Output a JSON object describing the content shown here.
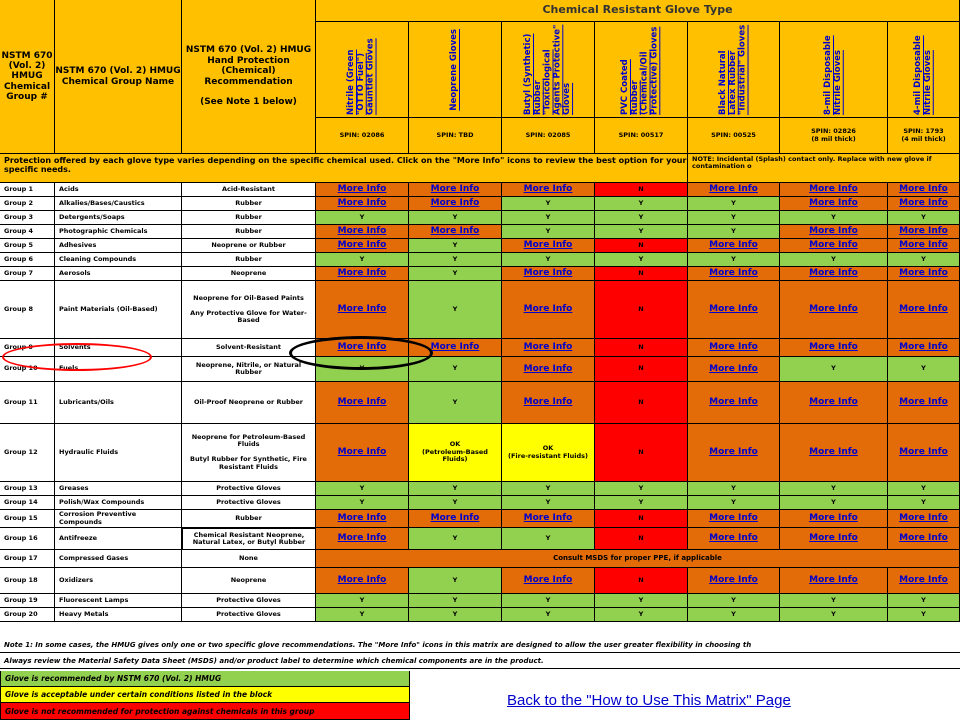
{
  "header": {
    "col_group": "NSTM 670 (Vol. 2) HMUG Chemical Group #",
    "col_name": "NSTM 670 (Vol. 2) HMUG Chemical Group Name",
    "col_rec": "NSTM 670 (Vol. 2) HMUG Hand Protection (Chemical) Recommendation\n\n(See Note 1 below)",
    "glove_type_title": "Chemical Resistant Glove Type"
  },
  "gloves": [
    {
      "name": "Nitrile (Green \"OTTO Fuel\") Gauntlet Gloves",
      "spin": "SPIN: 02086"
    },
    {
      "name": "Neoprene Gloves",
      "spin": "SPIN: TBD"
    },
    {
      "name": "Butyl (Synthetic) Rubber \"Toxicological Agents Protective\" Gloves",
      "spin": "SPIN: 02085"
    },
    {
      "name": "PVC Coated Rubber (Chemical/Oil Protective) Gloves",
      "spin": "SPIN: 00517"
    },
    {
      "name": "Black Natural Latex Rubber \"Industrial\" Gloves",
      "spin": "SPIN: 00525"
    },
    {
      "name": "8-mil Disposable Nitrile Gloves",
      "spin": "SPIN: 02826\n(8 mil thick)"
    },
    {
      "name": "4-mil Disposable Nitrile Gloves",
      "spin": "SPIN: 1793\n(4 mil thick)"
    }
  ],
  "protection_note": "Protection offered by each glove type varies depending on the specific chemical used.  Click on the \"More Info\" icons to review the best option for your specific needs.",
  "incidental_note": "NOTE: Incidental (Splash) contact only. Replace with new glove if contamination o",
  "link_text": "More Info",
  "rows": [
    {
      "group": "Group 1",
      "name": "Acids",
      "rec": "Acid-Resistant",
      "cells": [
        "More Info",
        "More Info",
        "More Info",
        "N",
        "More Info",
        "More Info",
        "More Info"
      ]
    },
    {
      "group": "Group 2",
      "name": "Alkalies/Bases/Caustics",
      "rec": "Rubber",
      "cells": [
        "More Info",
        "More Info",
        "Y",
        "Y",
        "Y",
        "More Info",
        "More Info"
      ]
    },
    {
      "group": "Group 3",
      "name": "Detergents/Soaps",
      "rec": "Rubber",
      "cells": [
        "Y",
        "Y",
        "Y",
        "Y",
        "Y",
        "Y",
        "Y"
      ]
    },
    {
      "group": "Group 4",
      "name": "Photographic Chemicals",
      "rec": "Rubber",
      "cells": [
        "More Info",
        "More Info",
        "Y",
        "Y",
        "Y",
        "More Info",
        "More Info"
      ]
    },
    {
      "group": "Group 5",
      "name": "Adhesives",
      "rec": "Neoprene or Rubber",
      "cells": [
        "More Info",
        "Y",
        "More Info",
        "N",
        "More Info",
        "More Info",
        "More Info"
      ]
    },
    {
      "group": "Group 6",
      "name": "Cleaning Compounds",
      "rec": "Rubber",
      "cells": [
        "Y",
        "Y",
        "Y",
        "Y",
        "Y",
        "Y",
        "Y"
      ]
    },
    {
      "group": "Group 7",
      "name": "Aerosols",
      "rec": "Neoprene",
      "cells": [
        "More Info",
        "Y",
        "More Info",
        "N",
        "More Info",
        "More Info",
        "More Info"
      ]
    },
    {
      "group": "Group 8",
      "name": "Paint Materials (Oil-Based)",
      "rec": "Neoprene for Oil-Based Paints\n\nAny Protective Glove for Water-Based",
      "cells": [
        "More Info",
        "Y",
        "More Info",
        "N",
        "More Info",
        "More Info",
        "More Info"
      ]
    },
    {
      "group": "Group 9",
      "name": "Solvents",
      "rec": "Solvent-Resistant",
      "cells": [
        "More Info",
        "More Info",
        "More Info",
        "N",
        "More Info",
        "More Info",
        "More Info"
      ]
    },
    {
      "group": "Group 10",
      "name": "Fuels",
      "rec": "Neoprene, Nitrile, or Natural Rubber",
      "cells": [
        "Y",
        "Y",
        "More Info",
        "N",
        "More Info",
        "Y",
        "Y"
      ]
    },
    {
      "group": "Group 11",
      "name": "Lubricants/Oils",
      "rec": "Oil-Proof Neoprene or Rubber",
      "cells": [
        "More Info",
        "Y",
        "More Info",
        "N",
        "More Info",
        "More Info",
        "More Info"
      ]
    },
    {
      "group": "Group 12",
      "name": "Hydraulic Fluids",
      "rec": "Neoprene for Petroleum-Based Fluids\n\nButyl Rubber for Synthetic, Fire Resistant Fluids",
      "cells": [
        "More Info",
        "OK\n(Petroleum-Based Fluids)",
        "OK\n(Fire-resistant Fluids)",
        "N",
        "More Info",
        "More Info",
        "More Info"
      ]
    },
    {
      "group": "Group 13",
      "name": "Greases",
      "rec": "Protective Gloves",
      "cells": [
        "Y",
        "Y",
        "Y",
        "Y",
        "Y",
        "Y",
        "Y"
      ]
    },
    {
      "group": "Group 14",
      "name": "Polish/Wax Compounds",
      "rec": "Protective Gloves",
      "cells": [
        "Y",
        "Y",
        "Y",
        "Y",
        "Y",
        "Y",
        "Y"
      ]
    },
    {
      "group": "Group 15",
      "name": "Corrosion Preventive Compounds",
      "rec": "Rubber",
      "cells": [
        "More Info",
        "More Info",
        "More Info",
        "N",
        "More Info",
        "More Info",
        "More Info"
      ]
    },
    {
      "group": "Group 16",
      "name": "Antifreeze",
      "rec": "Chemical Resistant Neoprene, Natural Latex, or Butyl Rubber",
      "cells": [
        "More Info",
        "Y",
        "Y",
        "N",
        "More Info",
        "More Info",
        "More Info"
      ]
    },
    {
      "group": "Group 17",
      "name": "Compressed Gases",
      "rec": "None",
      "consult": "Consult MSDS for proper PPE, if applicable"
    },
    {
      "group": "Group 18",
      "name": "Oxidizers",
      "rec": "Neoprene",
      "cells": [
        "More Info",
        "Y",
        "More Info",
        "N",
        "More Info",
        "More Info",
        "More Info"
      ]
    },
    {
      "group": "Group 19",
      "name": "Fluorescent Lamps",
      "rec": "Protective Gloves",
      "cells": [
        "Y",
        "Y",
        "Y",
        "Y",
        "Y",
        "Y",
        "Y"
      ]
    },
    {
      "group": "Group 20",
      "name": "Heavy Metals",
      "rec": "Protective Gloves",
      "cells": [
        "Y",
        "Y",
        "Y",
        "Y",
        "Y",
        "Y",
        "Y"
      ]
    }
  ],
  "footnotes": [
    "Note 1: In some cases, the HMUG gives only one or two specific glove recommendations.  The \"More Info\" icons in this matrix are designed to allow the user greater flexibility in choosing th",
    "Always review the Material Safety Data Sheet (MSDS) and/or product label to determine which chemical components are in the product."
  ],
  "legend": [
    {
      "text": "Glove is recommended by NSTM 670 (Vol. 2) HMUG",
      "color": "#92D050"
    },
    {
      "text": "Glove is acceptable under certain conditions listed in the block",
      "color": "#FFFF00"
    },
    {
      "text": "Glove is not recommended for protection against chemicals in this group",
      "color": "#FF0000"
    }
  ],
  "back_link": "Back to the \"How to Use This Matrix\" Page",
  "colors": {
    "header": "#FFC000",
    "more_info": "#E36C09",
    "yes": "#92D050",
    "no": "#FF0000",
    "conditional": "#FFFF00",
    "link": "#0000CC",
    "circle_red": "#FF0000",
    "circle_black": "#000000"
  }
}
